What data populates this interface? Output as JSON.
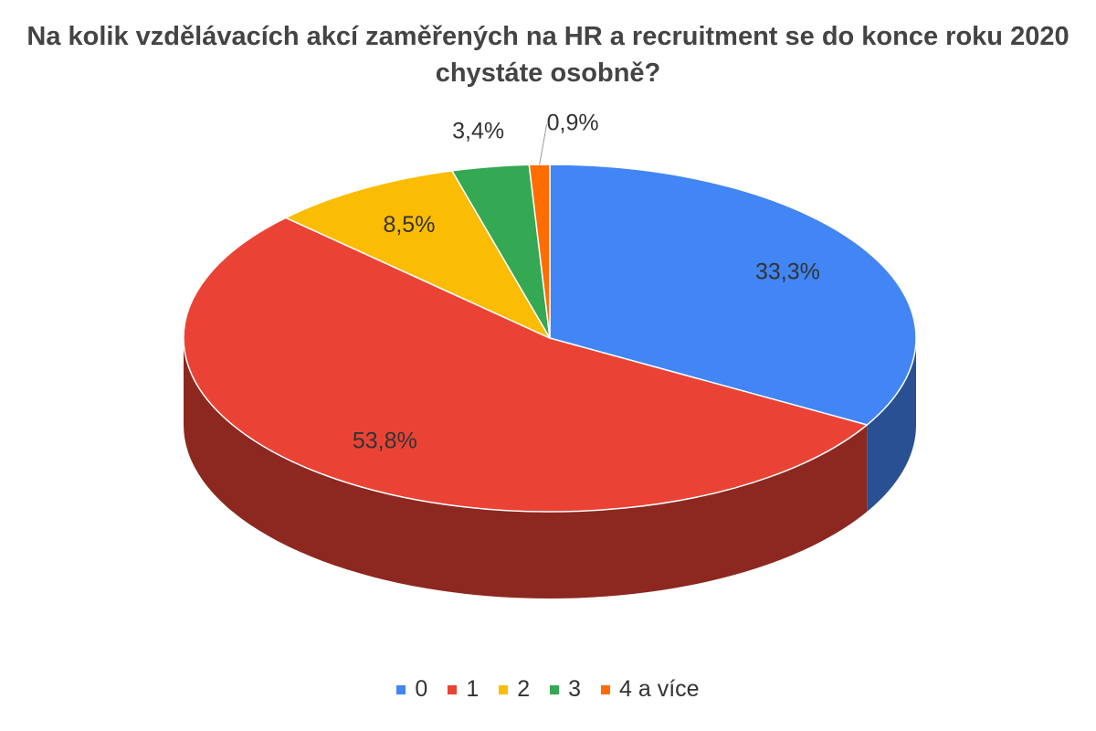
{
  "chart_data": {
    "type": "pie3d",
    "title": "Na kolik vzdělávacích akcí zaměřených na HR a recruitment se do konce roku 2020 chystáte osobně?",
    "categories": [
      "0",
      "1",
      "2",
      "3",
      "4 a více"
    ],
    "values": [
      33.3,
      53.8,
      8.5,
      3.4,
      0.9
    ],
    "value_labels": [
      "33,3%",
      "53,8%",
      "8,5%",
      "3,4%",
      "0,9%"
    ],
    "colors": [
      "#4285f4",
      "#ea4335",
      "#fbbc04",
      "#34a853",
      "#ff6d01"
    ],
    "legend": "bottom"
  }
}
